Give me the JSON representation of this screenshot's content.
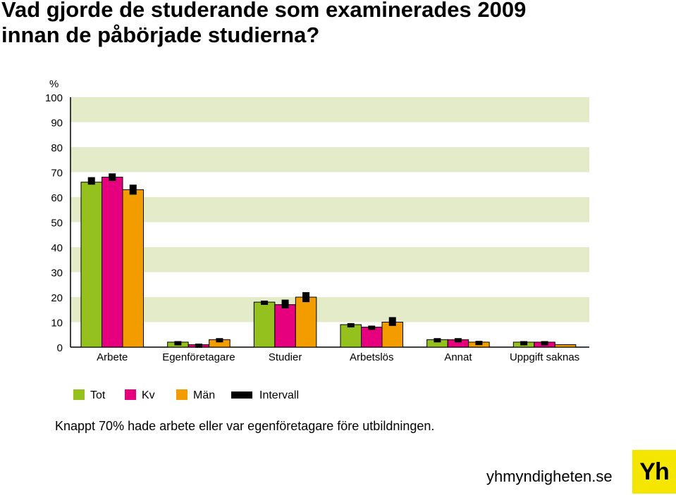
{
  "title": {
    "line1": "Vad gjorde de studerande som examinerades 2009",
    "line2": "innan de påbörjade studierna?"
  },
  "caption": "Knappt 70% hade arbete eller var egenföretagare före utbildningen.",
  "site": "yhmyndigheten.se",
  "logo_text": "Yh",
  "colors": {
    "tot": "#95c11f",
    "kv": "#e6007e",
    "man": "#f39c00",
    "interval": "#000000",
    "band": "#e3ebc8"
  },
  "chart_data": {
    "type": "bar",
    "title": "Vad gjorde de studerande som examinerades 2009 innan de påbörjade studierna?",
    "ylabel": "%",
    "xlabel": "",
    "ylim": [
      0,
      100
    ],
    "yticks": [
      0,
      10,
      20,
      30,
      40,
      50,
      60,
      70,
      80,
      90,
      100
    ],
    "categories": [
      "Arbete",
      "Egenföretagare",
      "Studier",
      "Arbetslös",
      "Annat",
      "Uppgift saknas"
    ],
    "series": [
      {
        "name": "Tot",
        "values": [
          66,
          2,
          18,
          9,
          3,
          2
        ],
        "interval": [
          [
            65,
            68
          ],
          [
            1.6,
            2.4
          ],
          [
            17.6,
            18.6
          ],
          [
            8.6,
            9.6
          ],
          [
            2.6,
            3.6
          ],
          [
            1.6,
            2.4
          ]
        ]
      },
      {
        "name": "Kv",
        "values": [
          68,
          1,
          17,
          8,
          3,
          2
        ],
        "interval": [
          [
            66.5,
            69.5
          ],
          [
            0.6,
            1.4
          ],
          [
            15.5,
            19
          ],
          [
            7.6,
            8.6
          ],
          [
            2.6,
            3.6
          ],
          [
            1.6,
            2.4
          ]
        ]
      },
      {
        "name": "Män",
        "values": [
          63,
          3,
          20,
          10,
          2,
          1
        ],
        "interval": [
          [
            61,
            65
          ],
          [
            2.6,
            3.6
          ],
          [
            18,
            22
          ],
          [
            8.5,
            12
          ],
          [
            1.5,
            2.5
          ],
          null
        ]
      }
    ],
    "legend": [
      "Tot",
      "Kv",
      "Män",
      "Intervall"
    ],
    "legend_position": "bottom",
    "grid": "alternating horizontal bands"
  }
}
